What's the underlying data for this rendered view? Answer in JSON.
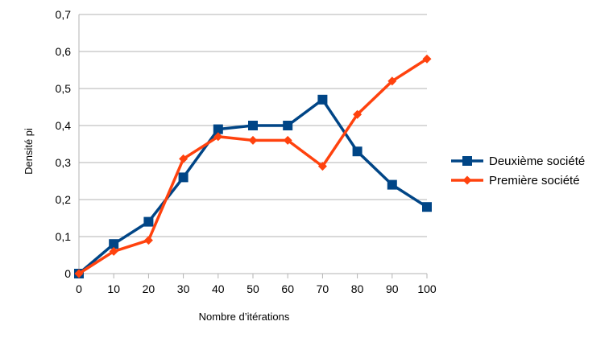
{
  "chart_data": {
    "type": "line",
    "title": "",
    "xlabel": "Nombre d’itérations",
    "ylabel": "Densité pi",
    "x": [
      0,
      10,
      20,
      30,
      40,
      50,
      60,
      70,
      80,
      90,
      100
    ],
    "x_tick_labels": [
      "0",
      "10",
      "20",
      "30",
      "40",
      "50",
      "60",
      "70",
      "80",
      "90",
      "100"
    ],
    "y_tick_labels": [
      "0",
      "0,1",
      "0,2",
      "0,3",
      "0,4",
      "0,5",
      "0,6",
      "0,7"
    ],
    "ylim": [
      0,
      0.7
    ],
    "grid": "horizontal",
    "legend_position": "right",
    "series": [
      {
        "name": "Deuxième société",
        "color": "#004586",
        "marker": "square",
        "values": [
          0,
          0.08,
          0.14,
          0.26,
          0.39,
          0.4,
          0.4,
          0.47,
          0.33,
          0.24,
          0.18
        ]
      },
      {
        "name": "Première société",
        "color": "#ff420e",
        "marker": "diamond",
        "values": [
          0,
          0.06,
          0.09,
          0.31,
          0.37,
          0.36,
          0.36,
          0.29,
          0.43,
          0.52,
          0.58
        ]
      }
    ]
  }
}
